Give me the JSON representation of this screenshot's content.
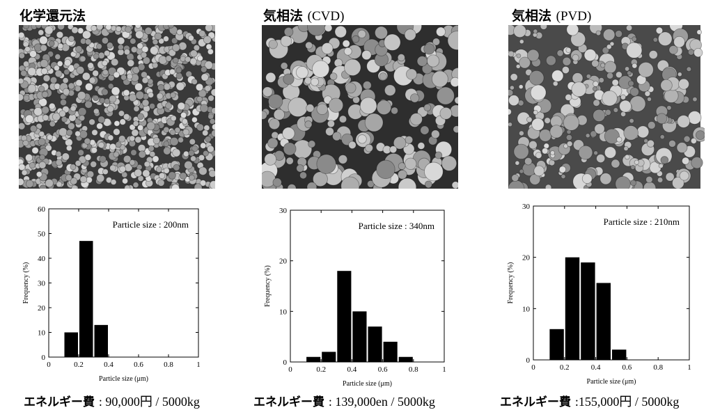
{
  "panels": [
    {
      "title": "化学還元法",
      "title_latin": "",
      "energy_label": "エネルギー費",
      "energy_value": ": 90,000円 / 5000kg",
      "sem_palette": {
        "bg": "#3a3a3a",
        "p": "#9a9a9a"
      }
    },
    {
      "title": "気相法 ",
      "title_latin": "(CVD)",
      "energy_label": "エネルギー費",
      "energy_value": ": 139,000en / 5000kg",
      "sem_palette": {
        "bg": "#2e2e2e",
        "p": "#a8a8a8"
      }
    },
    {
      "title": "気相法 ",
      "title_latin": "(PVD)",
      "energy_label": "エネルギー費",
      "energy_value": ":155,000円 / 5000kg",
      "sem_palette": {
        "bg": "#4a4a4a",
        "p": "#c4c4c4"
      }
    }
  ],
  "chart_data": [
    {
      "type": "bar",
      "annotation": "Particle size : 200nm",
      "xlabel": "Particle size (μm)",
      "ylabel": "Frequency (%)",
      "xlim": [
        0,
        1
      ],
      "ylim": [
        0,
        60
      ],
      "xticks": [
        "0",
        "0.2",
        "0.4",
        "0.6",
        "0.8",
        "1"
      ],
      "yticks": [
        "0",
        "10",
        "20",
        "30",
        "40",
        "50",
        "60"
      ],
      "bins": [
        [
          0.1,
          0.2
        ],
        [
          0.2,
          0.3
        ],
        [
          0.3,
          0.4
        ]
      ],
      "values": [
        10,
        47,
        13
      ]
    },
    {
      "type": "bar",
      "annotation": "Particle size : 340nm",
      "xlabel": "Particle size (μm)",
      "ylabel": "Frequency (%)",
      "xlim": [
        0,
        1
      ],
      "ylim": [
        0,
        30
      ],
      "xticks": [
        "0",
        "0.2",
        "0.4",
        "0.6",
        "0.8",
        "1"
      ],
      "yticks": [
        "0",
        "10",
        "20",
        "30"
      ],
      "bins": [
        [
          0.1,
          0.2
        ],
        [
          0.2,
          0.3
        ],
        [
          0.3,
          0.4
        ],
        [
          0.4,
          0.5
        ],
        [
          0.5,
          0.6
        ],
        [
          0.6,
          0.7
        ],
        [
          0.7,
          0.8
        ]
      ],
      "values": [
        1,
        2,
        18,
        10,
        7,
        4,
        1
      ]
    },
    {
      "type": "bar",
      "annotation": "Particle size : 210nm",
      "xlabel": "Particle size (μm)",
      "ylabel": "Frequency (%)",
      "xlim": [
        0,
        1
      ],
      "ylim": [
        0,
        30
      ],
      "xticks": [
        "0",
        "0.2",
        "0.4",
        "0.6",
        "0.8",
        "1"
      ],
      "yticks": [
        "0",
        "10",
        "20",
        "30"
      ],
      "bins": [
        [
          0.1,
          0.2
        ],
        [
          0.2,
          0.3
        ],
        [
          0.3,
          0.4
        ],
        [
          0.4,
          0.5
        ],
        [
          0.5,
          0.6
        ]
      ],
      "values": [
        6,
        20,
        19,
        15,
        2
      ]
    }
  ]
}
